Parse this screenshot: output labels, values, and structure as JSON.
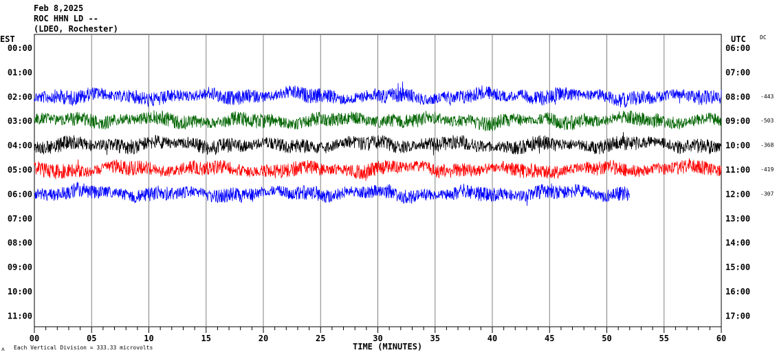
{
  "header": {
    "date": "Feb 8,2025",
    "station": "ROC HHN LD --",
    "network": "(LDEO, Rochester)"
  },
  "left_axis_title": "EST",
  "right_axis_title": "UTC",
  "dc_title": "DC",
  "footer": {
    "xlabel": "TIME (MINUTES)",
    "scale_note": "Each Vertical Division =  333.33 microvolts"
  },
  "chart_data": {
    "type": "line",
    "title": "ROC HHN LD --",
    "xlabel": "TIME (MINUTES)",
    "xlim": [
      0,
      60
    ],
    "x_ticks": [
      "00",
      "05",
      "10",
      "15",
      "20",
      "25",
      "30",
      "35",
      "40",
      "45",
      "50",
      "55",
      "60"
    ],
    "rows_est": [
      "00:00",
      "01:00",
      "02:00",
      "03:00",
      "04:00",
      "05:00",
      "06:00",
      "07:00",
      "08:00",
      "09:00",
      "10:00",
      "11:00"
    ],
    "rows_utc": [
      "06:00",
      "07:00",
      "08:00",
      "09:00",
      "10:00",
      "11:00",
      "12:00",
      "13:00",
      "14:00",
      "15:00",
      "16:00",
      "17:00"
    ],
    "grid": "vertical every 5 minutes",
    "series": [
      {
        "row": 2,
        "color": "#0000ff",
        "dc_offset": "-443",
        "end_minute": 60
      },
      {
        "row": 3,
        "color": "#006400",
        "dc_offset": "-503",
        "end_minute": 60
      },
      {
        "row": 4,
        "color": "#000000",
        "dc_offset": "-368",
        "end_minute": 60
      },
      {
        "row": 5,
        "color": "#ff0000",
        "dc_offset": "-419",
        "end_minute": 60
      },
      {
        "row": 6,
        "color": "#0000ff",
        "dc_offset": "-307",
        "end_minute": 52
      }
    ]
  }
}
